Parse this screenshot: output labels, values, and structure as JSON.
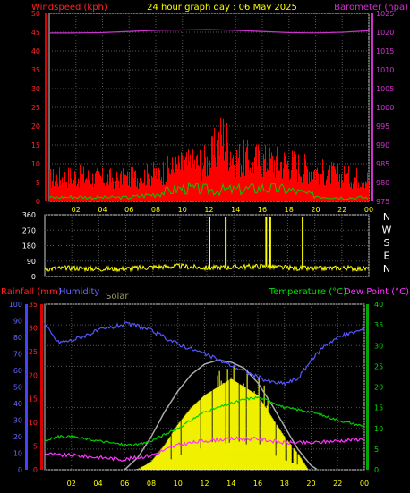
{
  "header": {
    "left_label": "Windspeed (kph)",
    "title": "24 hour graph day : 06 Mav 2025",
    "right_label": "Barometer (hpa)"
  },
  "chart_data": [
    {
      "type": "line",
      "name": "wind-barometer",
      "xticks": [
        "02",
        "04",
        "06",
        "08",
        "10",
        "12",
        "14",
        "16",
        "18",
        "20",
        "22",
        "00"
      ],
      "left_axis": {
        "label": "Windspeed (kph)",
        "ticks": [
          0,
          5,
          10,
          15,
          20,
          25,
          30,
          35,
          40,
          45,
          50
        ],
        "ylim": [
          0,
          50
        ]
      },
      "right_axis": {
        "label": "Barometer (hpa)",
        "ticks": [
          975,
          980,
          985,
          990,
          995,
          1000,
          1005,
          1010,
          1015,
          1020,
          1025
        ],
        "ylim": [
          975,
          1025
        ]
      },
      "series": [
        {
          "name": "Barometer",
          "color": "#cc33cc",
          "axis": "right",
          "x": [
            0,
            2,
            4,
            6,
            8,
            10,
            12,
            14,
            16,
            18,
            20,
            22,
            24
          ],
          "values": [
            1019.8,
            1019.8,
            1019.9,
            1020.2,
            1020.5,
            1020.6,
            1020.7,
            1020.5,
            1020.2,
            1019.9,
            1019.8,
            1020.0,
            1020.4
          ]
        },
        {
          "name": "Wind gust",
          "color": "#ff0000",
          "axis": "left",
          "x": [
            0,
            2,
            4,
            6,
            8,
            10,
            12,
            13,
            14,
            16,
            18,
            20,
            22,
            24
          ],
          "values": [
            9,
            10,
            9,
            9,
            11,
            14,
            16,
            26,
            17,
            16,
            15,
            12,
            10,
            9
          ]
        },
        {
          "name": "Wind average",
          "color": "#00cc00",
          "axis": "left",
          "x": [
            0,
            2,
            4,
            6,
            8,
            10,
            12,
            14,
            16,
            18,
            20,
            22,
            24
          ],
          "values": [
            1,
            1.2,
            1,
            1,
            2,
            3.5,
            3,
            3,
            3.5,
            3,
            1.5,
            1,
            1
          ]
        }
      ]
    },
    {
      "type": "scatter",
      "name": "wind-direction",
      "xticks": [
        "02",
        "04",
        "06",
        "08",
        "10",
        "12",
        "14",
        "16",
        "18",
        "20",
        "22",
        "00"
      ],
      "left_axis": {
        "ticks": [
          0,
          90,
          180,
          270,
          360
        ],
        "ylim": [
          0,
          360
        ]
      },
      "right_labels": [
        "N",
        "W",
        "S",
        "E",
        "N"
      ],
      "series": [
        {
          "name": "Direction",
          "color": "#ffff00",
          "x": [
            0,
            2,
            4,
            6,
            8,
            10,
            12,
            14,
            16,
            18,
            20,
            22,
            24
          ],
          "values": [
            45,
            50,
            45,
            45,
            55,
            60,
            50,
            55,
            60,
            50,
            45,
            50,
            45
          ]
        }
      ],
      "spikes": [
        {
          "x": 12.2,
          "value": 350
        },
        {
          "x": 13.4,
          "value": 350
        },
        {
          "x": 16.4,
          "value": 350
        },
        {
          "x": 16.7,
          "value": 350
        },
        {
          "x": 19.1,
          "value": 350
        }
      ]
    },
    {
      "type": "area",
      "name": "rain-humidity-temp",
      "xticks": [
        "02",
        "04",
        "06",
        "08",
        "10",
        "12",
        "14",
        "16",
        "18",
        "20",
        "22",
        "00"
      ],
      "labels": {
        "rainfall": "Rainfall (mm)",
        "humidity": "Humidity",
        "solar": "Solar",
        "temperature": "Temperature (°C)",
        "dewpoint": "Dew Point (°C)"
      },
      "left_axis_rain": {
        "ticks": [
          0,
          5,
          10,
          15,
          20,
          25,
          30,
          35
        ],
        "ylim": [
          0,
          35
        ]
      },
      "left_axis_humidity": {
        "ticks": [
          0,
          10,
          20,
          30,
          40,
          50,
          60,
          70,
          80,
          90,
          100
        ],
        "ylim": [
          0,
          100
        ]
      },
      "right_axis_temp": {
        "ticks": [
          0,
          5,
          10,
          15,
          20,
          25,
          30,
          35,
          40
        ],
        "ylim": [
          0,
          40
        ]
      },
      "series": [
        {
          "name": "Humidity",
          "color": "#5555ff",
          "axis": "humidity",
          "x": [
            0,
            0.5,
            1,
            2,
            4,
            6,
            7,
            8,
            10,
            12,
            14,
            16,
            17,
            18,
            19,
            20,
            21,
            22,
            24
          ],
          "values": [
            88,
            82,
            77,
            78,
            84,
            88,
            87,
            84,
            76,
            70,
            63,
            56,
            53,
            52,
            55,
            66,
            75,
            80,
            85
          ]
        },
        {
          "name": "Temperature",
          "color": "#00cc00",
          "axis": "temp",
          "x": [
            0,
            1,
            2,
            4,
            6,
            7,
            8,
            10,
            12,
            14,
            15,
            16,
            17,
            18,
            20,
            22,
            24
          ],
          "values": [
            7,
            8,
            8,
            7,
            6,
            6,
            7,
            10,
            14,
            16,
            17,
            17.5,
            16.5,
            15,
            14,
            12,
            10.5
          ]
        },
        {
          "name": "Dew Point",
          "color": "#ff33ff",
          "axis": "temp",
          "x": [
            0,
            1,
            2,
            4,
            6,
            8,
            10,
            12,
            14,
            16,
            18,
            20,
            22,
            24
          ],
          "values": [
            4,
            3.5,
            3.5,
            3,
            2.5,
            3.5,
            6,
            7,
            7.5,
            7.5,
            6.5,
            6.5,
            7,
            7.5
          ]
        },
        {
          "name": "Solar max",
          "color": "#aaaaaa",
          "axis": "temp",
          "x": [
            6,
            7,
            8,
            9,
            10,
            11,
            12,
            13,
            14,
            15,
            16,
            17,
            18,
            19,
            20,
            20.5
          ],
          "values": [
            0,
            3,
            8,
            14,
            19,
            23,
            25.5,
            26.5,
            26,
            24.5,
            21,
            16,
            10.5,
            5,
            1,
            0
          ]
        },
        {
          "name": "Solar",
          "color": "#ffff00",
          "axis": "temp",
          "x": [
            6.8,
            7.5,
            8,
            9,
            10,
            11,
            12,
            13,
            14,
            15,
            16,
            17,
            18,
            19,
            19.8
          ],
          "values": [
            0,
            1,
            2,
            6,
            11,
            15,
            18,
            20,
            22,
            20,
            18,
            13,
            8,
            4,
            0
          ]
        }
      ],
      "rain": []
    }
  ]
}
